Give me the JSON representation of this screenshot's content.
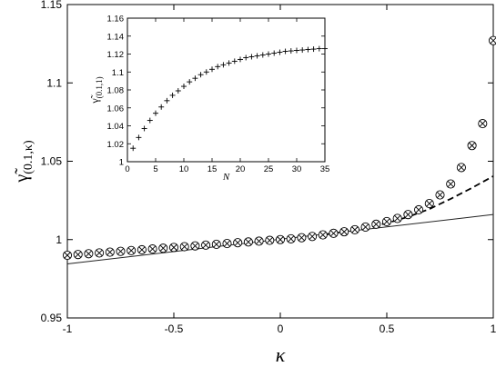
{
  "chart_data": [
    {
      "id": "main",
      "type": "scatter",
      "xlabel": "κ",
      "ylabel_symbol": "γ̃",
      "ylabel_subscript": "(0.1,κ)",
      "xlim": [
        -1,
        1
      ],
      "ylim": [
        0.95,
        1.15
      ],
      "xticks": [
        -1,
        -0.5,
        0,
        0.5,
        1
      ],
      "xtick_labels": [
        "-1",
        "-0.5",
        "0",
        "0.5",
        "1"
      ],
      "yticks": [
        0.95,
        1,
        1.05,
        1.1,
        1.15
      ],
      "ytick_labels": [
        "0.95",
        "1",
        "1.05",
        "1.1",
        "1.15"
      ],
      "grid": false,
      "series": [
        {
          "marker": "circle-cross",
          "x": [
            -1,
            -0.95,
            -0.9,
            -0.85,
            -0.8,
            -0.75,
            -0.7,
            -0.65,
            -0.6,
            -0.55,
            -0.5,
            -0.45,
            -0.4,
            -0.35,
            -0.3,
            -0.25,
            -0.2,
            -0.15,
            -0.1,
            -0.05,
            0,
            0.05,
            0.1,
            0.15,
            0.2,
            0.25,
            0.3,
            0.35,
            0.4,
            0.45,
            0.5,
            0.55,
            0.6,
            0.65,
            0.7,
            0.75,
            0.8,
            0.85,
            0.9,
            0.95,
            1
          ],
          "y": [
            0.99,
            0.9905,
            0.991,
            0.9915,
            0.992,
            0.9925,
            0.993,
            0.9935,
            0.994,
            0.9945,
            0.995,
            0.9955,
            0.996,
            0.9965,
            0.997,
            0.9975,
            0.998,
            0.9985,
            0.999,
            0.9995,
            1.0,
            1.0005,
            1.0012,
            1.002,
            1.003,
            1.004,
            1.005,
            1.0063,
            1.008,
            1.0098,
            1.0115,
            1.0135,
            1.016,
            1.019,
            1.023,
            1.0285,
            1.0355,
            1.046,
            1.06,
            1.074,
            1.127
          ]
        },
        {
          "line": "dashed",
          "x": [
            0.2,
            0.3,
            0.4,
            0.5,
            0.6,
            0.7,
            0.8,
            0.9,
            1.0
          ],
          "y": [
            1.003,
            1.005,
            1.0075,
            1.0105,
            1.0145,
            1.0195,
            1.026,
            1.033,
            1.0405
          ]
        },
        {
          "line": "solid",
          "x": [
            -1,
            1
          ],
          "y": [
            0.9845,
            1.016
          ]
        }
      ]
    },
    {
      "id": "inset",
      "type": "scatter",
      "xlabel": "N",
      "ylabel_symbol": "γ̃",
      "ylabel_subscript": "(0.1,1)",
      "xlim": [
        0,
        35
      ],
      "ylim": [
        1,
        1.16
      ],
      "xticks": [
        0,
        5,
        10,
        15,
        20,
        25,
        30,
        35
      ],
      "xtick_labels": [
        "0",
        "5",
        "10",
        "15",
        "20",
        "25",
        "30",
        "35"
      ],
      "yticks": [
        1,
        1.02,
        1.04,
        1.06,
        1.08,
        1.1,
        1.12,
        1.14,
        1.16
      ],
      "ytick_labels": [
        "1",
        "1.02",
        "1.04",
        "1.06",
        "1.08",
        "1.1",
        "1.12",
        "1.14",
        "1.16"
      ],
      "grid": false,
      "series": [
        {
          "marker": "plus",
          "x": [
            1,
            2,
            3,
            4,
            5,
            6,
            7,
            8,
            9,
            10,
            11,
            12,
            13,
            14,
            15,
            16,
            17,
            18,
            19,
            20,
            21,
            22,
            23,
            24,
            25,
            26,
            27,
            28,
            29,
            30,
            31,
            32,
            33,
            34,
            35
          ],
          "y": [
            1.015,
            1.027,
            1.037,
            1.046,
            1.054,
            1.061,
            1.068,
            1.074,
            1.079,
            1.084,
            1.089,
            1.093,
            1.097,
            1.1,
            1.103,
            1.106,
            1.108,
            1.11,
            1.112,
            1.114,
            1.116,
            1.117,
            1.118,
            1.119,
            1.12,
            1.121,
            1.122,
            1.123,
            1.1235,
            1.124,
            1.1245,
            1.125,
            1.1255,
            1.126,
            1.126
          ]
        }
      ]
    }
  ]
}
